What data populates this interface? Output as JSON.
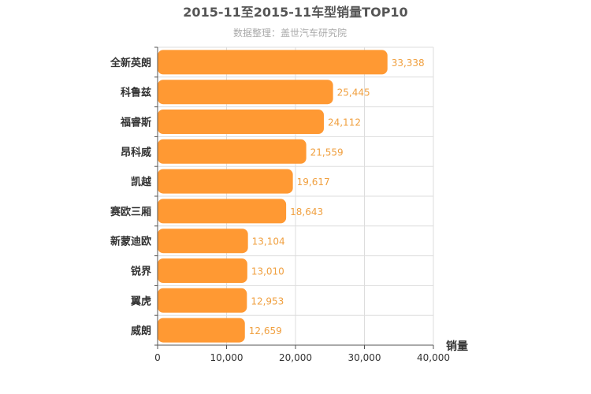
{
  "chart_data": {
    "type": "bar",
    "orientation": "horizontal",
    "title": "2015-11至2015-11车型销量TOP10",
    "subtitle": "数据整理：盖世汽车研究院",
    "categories": [
      "全新英朗",
      "科鲁兹",
      "福睿斯",
      "昂科威",
      "凯越",
      "赛欧三厢",
      "新蒙迪欧",
      "锐界",
      "翼虎",
      "威朗"
    ],
    "values": [
      33338,
      25445,
      24112,
      21559,
      19617,
      18643,
      13104,
      13010,
      12953,
      12659
    ],
    "value_labels": [
      "33,338",
      "25,445",
      "24,112",
      "21,559",
      "19,617",
      "18,643",
      "13,104",
      "13,010",
      "12,953",
      "12,659"
    ],
    "xlim": [
      0,
      40000
    ],
    "xticks": [
      0,
      10000,
      20000,
      30000,
      40000
    ],
    "xtick_labels": [
      "0",
      "10,000",
      "20,000",
      "30,000",
      "40,000"
    ],
    "xlabel": "销量",
    "ylabel": "",
    "grid": true,
    "bar_color": "#ff9933",
    "value_color": "#f0a040"
  }
}
